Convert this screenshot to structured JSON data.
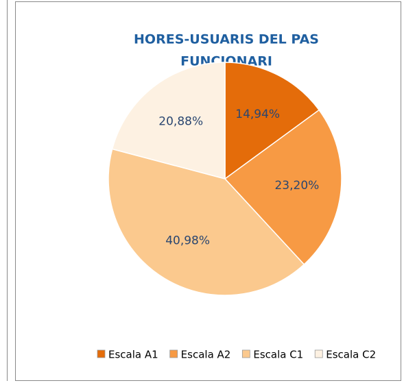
{
  "chart_data": {
    "type": "pie",
    "title_lines": [
      "HORES-USUARIS DEL PAS",
      "FUNCIONARI"
    ],
    "categories": [
      "Escala A1",
      "Escala A2",
      "Escala C1",
      "Escala C2"
    ],
    "values": [
      14.94,
      23.2,
      40.98,
      20.88
    ],
    "value_labels": [
      "14,94%",
      "23,20%",
      "40,98%",
      "20,88%"
    ],
    "colors": [
      "#e46c0a",
      "#f79a44",
      "#fbc98e",
      "#fdf1e2"
    ],
    "legend": "bottom"
  }
}
